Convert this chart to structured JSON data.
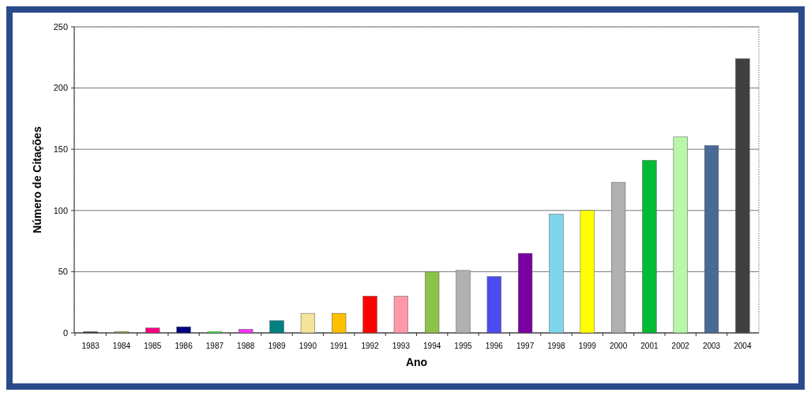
{
  "chart_data": {
    "type": "bar",
    "xlabel": "Ano",
    "ylabel": "Número de Citações",
    "categories": [
      "1983",
      "1984",
      "1985",
      "1986",
      "1987",
      "1988",
      "1989",
      "1990",
      "1991",
      "1992",
      "1993",
      "1994",
      "1995",
      "1996",
      "1997",
      "1998",
      "1999",
      "2000",
      "2001",
      "2002",
      "2003",
      "2004"
    ],
    "values": [
      1,
      1,
      4,
      5,
      1,
      3,
      10,
      16,
      16,
      30,
      30,
      50,
      51,
      46,
      65,
      97,
      100,
      123,
      141,
      160,
      153,
      224
    ],
    "colors": [
      "#333333",
      "#999933",
      "#ff0080",
      "#000080",
      "#33ff33",
      "#ff33ff",
      "#008080",
      "#f5e39a",
      "#ffc000",
      "#ff0000",
      "#ff99aa",
      "#8bc34a",
      "#b0b0b0",
      "#4b4bf0",
      "#7a00a0",
      "#7dd6ec",
      "#ffff00",
      "#b0b0b0",
      "#00bb33",
      "#b8f7a8",
      "#4a6a96",
      "#404040"
    ],
    "ylim": [
      0,
      250
    ],
    "yticks": [
      0,
      50,
      100,
      150,
      200,
      250
    ],
    "grid": "y"
  }
}
